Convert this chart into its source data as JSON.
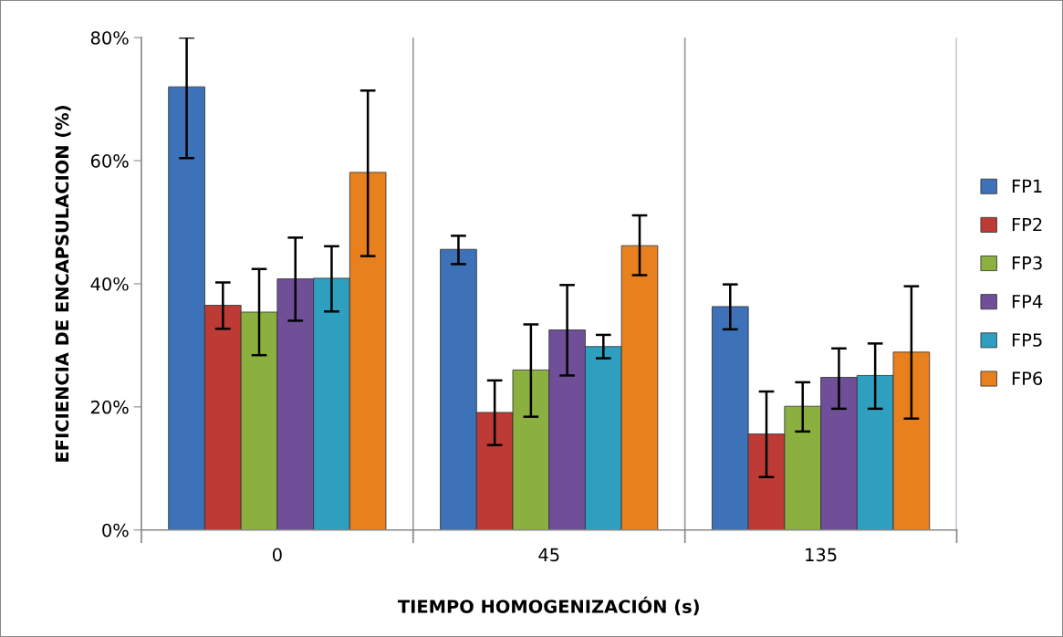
{
  "chart_data": {
    "type": "bar",
    "xlabel": "TIEMPO HOMOGENIZACIÓN (s)",
    "ylabel": "EFICIENCIA DE ENCAPSULACION (%)",
    "categories": [
      "0",
      "45",
      "135"
    ],
    "ylim": [
      0,
      80
    ],
    "yticks": [
      {
        "value": 0,
        "label": "0%"
      },
      {
        "value": 20,
        "label": "20%"
      },
      {
        "value": 40,
        "label": "40%"
      },
      {
        "value": 60,
        "label": "60%"
      },
      {
        "value": 80,
        "label": "80%"
      }
    ],
    "grid": "x",
    "legend": "right",
    "series": [
      {
        "name": "FP1",
        "color": "#3d72b8",
        "values": [
          72.0,
          45.6,
          36.3
        ],
        "errors": [
          [
            60.4,
            80
          ],
          [
            43.2,
            47.8
          ],
          [
            32.6,
            39.9
          ]
        ]
      },
      {
        "name": "FP2",
        "color": "#be3a34",
        "values": [
          36.5,
          19.1,
          15.6
        ],
        "errors": [
          [
            32.7,
            40.2
          ],
          [
            13.8,
            24.3
          ],
          [
            8.6,
            22.5
          ]
        ]
      },
      {
        "name": "FP3",
        "color": "#8cb040",
        "values": [
          35.4,
          26.0,
          20.1
        ],
        "errors": [
          [
            28.4,
            42.4
          ],
          [
            18.4,
            33.4
          ],
          [
            16.0,
            24.0
          ]
        ]
      },
      {
        "name": "FP4",
        "color": "#6e4f98",
        "values": [
          40.8,
          32.5,
          24.8
        ],
        "errors": [
          [
            34.0,
            47.5
          ],
          [
            25.1,
            39.8
          ],
          [
            19.7,
            29.5
          ]
        ]
      },
      {
        "name": "FP5",
        "color": "#2f9fbf",
        "values": [
          40.9,
          29.8,
          25.1
        ],
        "errors": [
          [
            35.5,
            46.1
          ],
          [
            27.9,
            31.7
          ],
          [
            19.7,
            30.3
          ]
        ]
      },
      {
        "name": "FP6",
        "color": "#e8801e",
        "values": [
          58.1,
          46.2,
          28.9
        ],
        "errors": [
          [
            44.5,
            71.4
          ],
          [
            41.4,
            51.1
          ],
          [
            18.1,
            39.6
          ]
        ]
      }
    ]
  }
}
